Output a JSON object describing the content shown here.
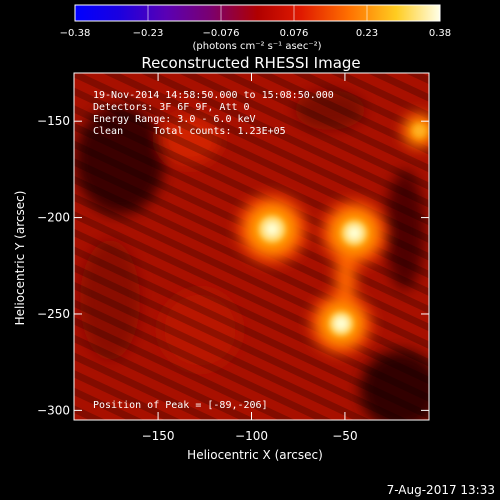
{
  "chart_data": {
    "type": "heatmap",
    "title": "Reconstructed RHESSI Image",
    "xlabel": "Heliocentric X (arcsec)",
    "ylabel": "Heliocentric Y (arcsec)",
    "xlim": [
      -195,
      -5
    ],
    "ylim": [
      -305,
      -125
    ],
    "x_ticks": [
      -150,
      -100,
      -50
    ],
    "y_ticks": [
      -150,
      -200,
      -250,
      -300
    ],
    "colorbar": {
      "ticks": [
        "-0.38",
        "-0.23",
        "-0.076",
        "0.076",
        "0.23",
        "0.38"
      ],
      "range": [
        -0.38,
        0.38
      ],
      "units_label": "(photons cm⁻² s⁻¹ asec⁻²)"
    },
    "annotations": [
      "19-Nov-2014 14:58:50.000 to 15:08:50.000",
      "Detectors: 3F 6F 9F, Att 0",
      "Energy Range: 3.0 - 6.0 keV",
      "Clean     Total counts: 1.23E+05"
    ],
    "peak_text": "Position of Peak = [-89,-206]",
    "sources": [
      {
        "x": -89,
        "y": -206,
        "peak": 0.38
      },
      {
        "x": -45,
        "y": -208,
        "peak": 0.36
      },
      {
        "x": -52,
        "y": -255,
        "peak": 0.34
      },
      {
        "x": -10,
        "y": -155,
        "peak": 0.2
      }
    ]
  },
  "footer_date": "7-Aug-2017 13:33"
}
